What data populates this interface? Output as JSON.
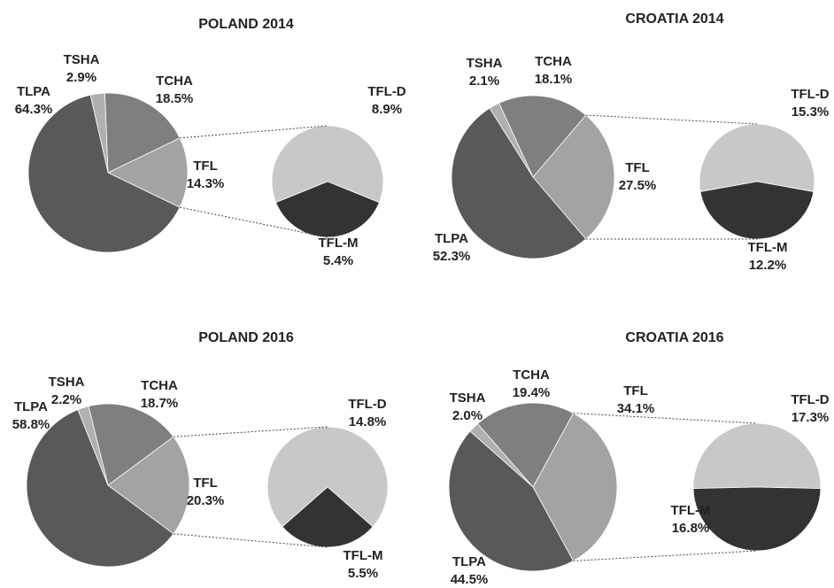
{
  "chart_data": [
    {
      "type": "pie",
      "title": "POLAND 2014",
      "categories": [
        "TLPA",
        "TSHA",
        "TCHA",
        "TFL"
      ],
      "values": [
        64.3,
        2.9,
        18.5,
        14.3
      ],
      "value_labels": [
        "64.3%",
        "2.9%",
        "18.5%",
        "14.3%"
      ],
      "colors": [
        "#595959",
        "#b0b0b0",
        "#7f7f7f",
        "#a3a3a3"
      ],
      "secondary": {
        "categories": [
          "TFL-D",
          "TFL-M"
        ],
        "values": [
          8.9,
          5.4
        ],
        "value_labels": [
          "8.9%",
          "5.4%"
        ],
        "colors": [
          "#c8c8c8",
          "#333333"
        ]
      }
    },
    {
      "type": "pie",
      "title": "CROATIA 2014",
      "categories": [
        "TLPA",
        "TSHA",
        "TCHA",
        "TFL"
      ],
      "values": [
        52.3,
        2.1,
        18.1,
        27.5
      ],
      "value_labels": [
        "52.3%",
        "2.1%",
        "18.1%",
        "27.5%"
      ],
      "colors": [
        "#595959",
        "#b0b0b0",
        "#7f7f7f",
        "#a3a3a3"
      ],
      "secondary": {
        "categories": [
          "TFL-D",
          "TFL-M"
        ],
        "values": [
          15.3,
          12.2
        ],
        "value_labels": [
          "15.3%",
          "12.2%"
        ],
        "colors": [
          "#c8c8c8",
          "#333333"
        ]
      }
    },
    {
      "type": "pie",
      "title": "POLAND 2016",
      "categories": [
        "TLPA",
        "TSHA",
        "TCHA",
        "TFL"
      ],
      "values": [
        58.8,
        2.2,
        18.7,
        20.3
      ],
      "value_labels": [
        "58.8%",
        "2.2%",
        "18.7%",
        "20.3%"
      ],
      "colors": [
        "#595959",
        "#b0b0b0",
        "#7f7f7f",
        "#a3a3a3"
      ],
      "secondary": {
        "categories": [
          "TFL-D",
          "TFL-M"
        ],
        "values": [
          14.8,
          5.5
        ],
        "value_labels": [
          "14.8%",
          "5.5%"
        ],
        "colors": [
          "#c8c8c8",
          "#333333"
        ]
      }
    },
    {
      "type": "pie",
      "title": "CROATIA 2016",
      "categories": [
        "TLPA",
        "TSHA",
        "TCHA",
        "TFL"
      ],
      "values": [
        44.5,
        2.0,
        19.4,
        34.1
      ],
      "value_labels": [
        "44.5%",
        "2.0%",
        "19.4%",
        "34.1%"
      ],
      "colors": [
        "#595959",
        "#b0b0b0",
        "#7f7f7f",
        "#a3a3a3"
      ],
      "secondary": {
        "categories": [
          "TFL-D",
          "TFL-M"
        ],
        "values": [
          17.3,
          16.8
        ],
        "value_labels": [
          "17.3%",
          "16.8%"
        ],
        "colors": [
          "#c8c8c8",
          "#333333"
        ]
      }
    }
  ]
}
